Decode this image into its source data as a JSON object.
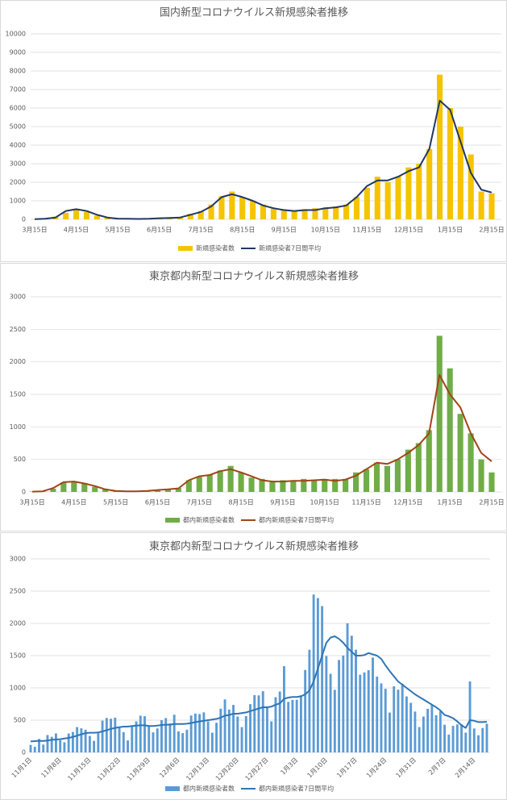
{
  "chart_data": [
    {
      "type": "bar_line",
      "title": "国内新型コロナウイルス新規感染者推移",
      "categories": [
        "3月15日",
        null,
        null,
        null,
        "4月15日",
        null,
        null,
        null,
        "5月15日",
        null,
        null,
        null,
        "6月15日",
        null,
        null,
        null,
        "7月15日",
        null,
        null,
        null,
        "8月15日",
        null,
        null,
        null,
        "9月15日",
        null,
        null,
        null,
        "10月15日",
        null,
        null,
        null,
        "11月15日",
        null,
        null,
        null,
        "12月15日",
        null,
        null,
        null,
        "1月15日",
        null,
        null,
        null,
        "2月15日"
      ],
      "series": [
        {
          "name": "新規感染者数",
          "type": "bar",
          "color": "#f5c400",
          "values": [
            15,
            40,
            150,
            350,
            500,
            400,
            200,
            100,
            50,
            30,
            30,
            40,
            60,
            80,
            120,
            300,
            450,
            800,
            1250,
            1500,
            1200,
            1000,
            800,
            600,
            550,
            450,
            550,
            600,
            650,
            700,
            800,
            1200,
            1700,
            2300,
            2000,
            2300,
            2800,
            3000,
            3800,
            7800,
            6000,
            5000,
            3500,
            1500,
            1400
          ]
        },
        {
          "name": "新規感染者7日間平均",
          "type": "line",
          "color": "#203864",
          "values": [
            10,
            30,
            100,
            450,
            550,
            450,
            250,
            100,
            40,
            30,
            20,
            30,
            60,
            80,
            100,
            250,
            400,
            700,
            1200,
            1350,
            1200,
            1000,
            750,
            600,
            500,
            450,
            500,
            500,
            600,
            650,
            750,
            1200,
            1800,
            2100,
            2100,
            2300,
            2600,
            2800,
            3800,
            6400,
            5900,
            4200,
            2500,
            1600,
            1450
          ]
        }
      ],
      "ylim": [
        0,
        10000
      ],
      "yticks": [
        0,
        1000,
        2000,
        3000,
        4000,
        5000,
        6000,
        7000,
        8000,
        9000,
        10000
      ],
      "grid": true
    },
    {
      "type": "bar_line",
      "title": "東京都内新型コロナウイルス新規感染者推移",
      "categories": [
        "3月15日",
        null,
        null,
        null,
        "4月15日",
        null,
        null,
        null,
        "5月15日",
        null,
        null,
        null,
        "6月15日",
        null,
        null,
        null,
        "7月15日",
        null,
        null,
        null,
        "8月15日",
        null,
        null,
        null,
        "9月15日",
        null,
        null,
        null,
        "10月15日",
        null,
        null,
        null,
        "11月15日",
        null,
        null,
        null,
        "12月15日",
        null,
        null,
        null,
        "1月15日",
        null,
        null,
        null,
        "2月15日"
      ],
      "series": [
        {
          "name": "都内新規感染者数",
          "type": "bar",
          "color": "#70ad47",
          "values": [
            5,
            10,
            50,
            150,
            150,
            130,
            80,
            40,
            15,
            10,
            10,
            20,
            30,
            40,
            60,
            180,
            230,
            260,
            330,
            400,
            300,
            220,
            200,
            150,
            180,
            180,
            200,
            180,
            200,
            200,
            200,
            300,
            350,
            450,
            400,
            500,
            650,
            750,
            950,
            2400,
            1900,
            1200,
            900,
            500,
            300
          ]
        },
        {
          "name": "都内新規感染者7日間平均",
          "type": "line",
          "color": "#a0451a",
          "values": [
            5,
            10,
            60,
            150,
            160,
            130,
            90,
            40,
            15,
            10,
            10,
            15,
            30,
            40,
            55,
            180,
            240,
            260,
            320,
            350,
            300,
            240,
            180,
            160,
            160,
            170,
            170,
            180,
            190,
            170,
            190,
            250,
            350,
            450,
            430,
            500,
            600,
            720,
            900,
            1800,
            1500,
            1300,
            900,
            600,
            470
          ]
        }
      ],
      "ylim": [
        0,
        3000
      ],
      "yticks": [
        0,
        500,
        1000,
        1500,
        2000,
        2500,
        3000
      ],
      "grid": true
    },
    {
      "type": "bar_line",
      "title": "東京都内新型コロナウイルス新規感染者推移",
      "x_label_rotation": -45,
      "categories": [
        "11月1日",
        null,
        null,
        null,
        null,
        null,
        null,
        "11月8日",
        null,
        null,
        null,
        null,
        null,
        null,
        "11月15日",
        null,
        null,
        null,
        null,
        null,
        null,
        "11月22日",
        null,
        null,
        null,
        null,
        null,
        null,
        "11月29日",
        null,
        null,
        null,
        null,
        null,
        null,
        "12月6日",
        null,
        null,
        null,
        null,
        null,
        null,
        "12月13日",
        null,
        null,
        null,
        null,
        null,
        null,
        "12月20日",
        null,
        null,
        null,
        null,
        null,
        null,
        "12月27日",
        null,
        null,
        null,
        null,
        null,
        null,
        "1月3日",
        null,
        null,
        null,
        null,
        null,
        null,
        "1月10日",
        null,
        null,
        null,
        null,
        null,
        null,
        "1月17日",
        null,
        null,
        null,
        null,
        null,
        null,
        "1月24日",
        null,
        null,
        null,
        null,
        null,
        null,
        "1月31日",
        null,
        null,
        null,
        null,
        null,
        null,
        "2月7日",
        null,
        null,
        null,
        null,
        null,
        null,
        "2月14日",
        null,
        null,
        null
      ],
      "series": [
        {
          "name": "都内新規感染者数",
          "type": "bar",
          "color": "#5b9bd5",
          "values": [
            116,
            87,
            209,
            122,
            269,
            242,
            294,
            189,
            157,
            293,
            317,
            393,
            374,
            352,
            255,
            180,
            298,
            493,
            534,
            522,
            539,
            391,
            314,
            186,
            401,
            481,
            570,
            561,
            418,
            311,
            372,
            500,
            533,
            449,
            584,
            327,
            299,
            352,
            572,
            602,
            595,
            621,
            480,
            305,
            460,
            678,
            822,
            664,
            736,
            556,
            392,
            563,
            748,
            888,
            884,
            949,
            708,
            481,
            856,
            944,
            1337,
            783,
            814,
            816,
            884,
            1278,
            1591,
            2447,
            2392,
            2268,
            1494,
            1219,
            970,
            1433,
            1502,
            2001,
            1809,
            1592,
            1204,
            1240,
            1274,
            1471,
            1175,
            1070,
            986,
            618,
            1026,
            973,
            1064,
            868,
            769,
            633,
            393,
            556,
            676,
            734,
            577,
            639,
            429,
            276,
            412,
            434,
            434,
            307,
            1100,
            371,
            266,
            378,
            445
          ]
        },
        {
          "name": "都内新規感染者7日間平均",
          "type": "line",
          "color": "#2e75b6",
          "values": [
            170,
            175,
            180,
            178,
            185,
            195,
            200,
            205,
            215,
            225,
            240,
            260,
            280,
            300,
            305,
            305,
            310,
            325,
            345,
            365,
            380,
            390,
            400,
            400,
            410,
            415,
            420,
            420,
            410,
            410,
            415,
            425,
            430,
            430,
            440,
            440,
            440,
            445,
            455,
            470,
            480,
            490,
            500,
            510,
            520,
            540,
            570,
            580,
            600,
            600,
            610,
            620,
            640,
            660,
            680,
            700,
            700,
            710,
            740,
            760,
            830,
            850,
            860,
            860,
            870,
            900,
            960,
            1100,
            1300,
            1500,
            1700,
            1780,
            1800,
            1760,
            1700,
            1620,
            1560,
            1500,
            1500,
            1510,
            1540,
            1520,
            1500,
            1450,
            1350,
            1260,
            1180,
            1100,
            1050,
            1000,
            950,
            900,
            860,
            820,
            780,
            740,
            700,
            650,
            580,
            560,
            530,
            480,
            420,
            380,
            500,
            490,
            470,
            470,
            475
          ]
        }
      ],
      "ylim": [
        0,
        3000
      ],
      "yticks": [
        0,
        500,
        1000,
        1500,
        2000,
        2500,
        3000
      ],
      "grid": true
    }
  ]
}
